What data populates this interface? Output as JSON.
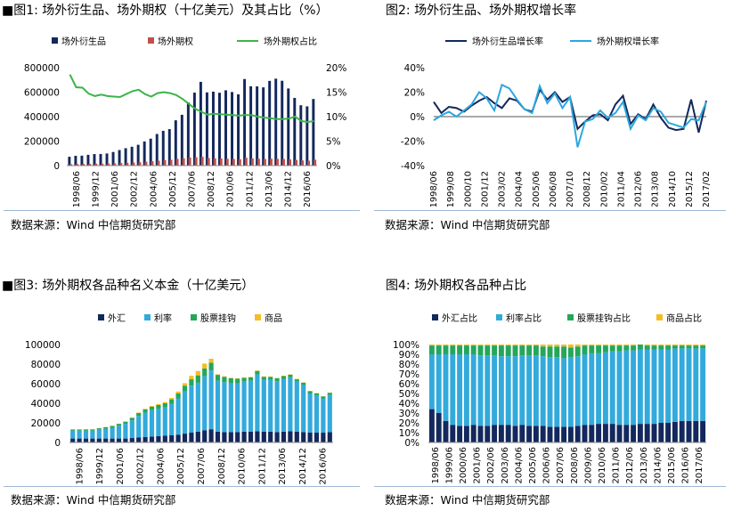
{
  "chart_data": [
    {
      "type": "bar+line",
      "title_prefix": "■",
      "title": "图1: 场外衍生品、场外期权（十亿美元）及其占比（%）",
      "source": "数据来源：Wind  中信期货研究部",
      "legend": [
        "场外衍生品",
        "场外期权",
        "场外期权占比"
      ],
      "colors": [
        "#13285c",
        "#c0504d",
        "#3cb44b"
      ],
      "categories_labeled": [
        "1998/06",
        "1999/12",
        "2001/06",
        "2002/12",
        "2004/06",
        "2005/12",
        "2007/06",
        "2008/12",
        "2010/06",
        "2011/12",
        "2013/06",
        "2014/12",
        "2016/06"
      ],
      "periods_start": "1998/06",
      "y_left": {
        "min": 0,
        "max": 800000,
        "ticks": [
          "0",
          "200000",
          "400000",
          "600000",
          "800000"
        ]
      },
      "y_right": {
        "min": 0,
        "max": 20,
        "ticks": [
          "0%",
          "5%",
          "10%",
          "15%",
          "20%"
        ]
      },
      "series": [
        {
          "name": "场外衍生品",
          "axis": "left",
          "values": [
            72000,
            80000,
            81000,
            88000,
            94000,
            95000,
            99000,
            111000,
            127000,
            142000,
            154000,
            170000,
            197000,
            220000,
            258000,
            284000,
            298000,
            370000,
            415000,
            516000,
            596000,
            684000,
            598000,
            604000,
            595000,
            615000,
            601000,
            582000,
            707000,
            648000,
            647000,
            639000,
            692000,
            710000,
            693000,
            630000,
            553000,
            493000,
            484000,
            544000
          ]
        },
        {
          "name": "场外期权",
          "axis": "left",
          "values": [
            12000,
            13000,
            14000,
            14000,
            16000,
            16000,
            17000,
            19000,
            21000,
            23000,
            26000,
            28000,
            32000,
            36000,
            40000,
            45000,
            48000,
            55000,
            60000,
            66000,
            68000,
            72000,
            62000,
            60000,
            58000,
            56000,
            55000,
            52000,
            64000,
            58000,
            56000,
            54000,
            56000,
            55000,
            54000,
            50000,
            46000,
            42000,
            40000,
            48000
          ]
        },
        {
          "name": "场外期权占比",
          "axis": "right",
          "values": [
            18.6,
            16.0,
            15.9,
            14.7,
            14.2,
            14.5,
            14.2,
            14.1,
            14.0,
            14.6,
            15.2,
            15.5,
            14.6,
            14.1,
            14.8,
            15.0,
            14.8,
            14.4,
            13.6,
            12.6,
            11.6,
            11.0,
            10.4,
            10.6,
            10.5,
            10.4,
            10.3,
            10.2,
            10.3,
            10.3,
            10.0,
            9.8,
            9.7,
            9.5,
            9.5,
            9.6,
            10.0,
            9.1,
            8.9,
            9.1
          ]
        }
      ]
    },
    {
      "type": "line",
      "title_prefix": "",
      "title": "图2: 场外衍生品、场外期权增长率",
      "source": "数据来源：Wind  中信期货研究部",
      "legend": [
        "场外衍生品增长率",
        "场外期权增长率"
      ],
      "colors": [
        "#13285c",
        "#2ca7df"
      ],
      "categories_labeled": [
        "1998/06",
        "1999/08",
        "2000/10",
        "2001/12",
        "2003/02",
        "2004/04",
        "2005/06",
        "2006/08",
        "2007/10",
        "2008/12",
        "2010/02",
        "2011/04",
        "2012/06",
        "2013/08",
        "2014/10",
        "2015/12",
        "2017/02"
      ],
      "y": {
        "min": -40,
        "max": 40,
        "ticks": [
          "-40%",
          "-20%",
          "0%",
          "20%",
          "40%"
        ]
      },
      "series": [
        {
          "name": "场外衍生品增长率",
          "values": [
            12,
            3,
            8,
            7,
            4,
            9,
            13,
            16,
            11,
            7,
            15,
            13,
            6,
            4,
            22,
            14,
            20,
            12,
            16,
            -10,
            -4,
            1,
            2,
            -3,
            10,
            17,
            -6,
            2,
            -2,
            10,
            -1,
            -9,
            -11,
            -10,
            14,
            -13,
            13
          ]
        },
        {
          "name": "场外期权增长率",
          "values": [
            -3,
            1,
            4,
            0,
            5,
            10,
            20,
            15,
            5,
            26,
            23,
            14,
            6,
            3,
            25,
            11,
            19,
            7,
            16,
            -25,
            -4,
            -2,
            5,
            -1,
            3,
            12,
            -10,
            1,
            -3,
            7,
            4,
            -5,
            -7,
            -9,
            -2,
            -3,
            12
          ]
        }
      ]
    },
    {
      "type": "stacked-bar",
      "title_prefix": "■",
      "title": "图3: 场外期权各品种名义本金（十亿美元）",
      "source": "数据来源：Wind  中信期货研究部",
      "legend": [
        "外汇",
        "利率",
        "股票挂钩",
        "商品"
      ],
      "colors": [
        "#13285c",
        "#33aadc",
        "#24a75a",
        "#f4bd23"
      ],
      "categories_labeled": [
        "1998/06",
        "1999/12",
        "2001/06",
        "2002/12",
        "2004/06",
        "2005/12",
        "2007/06",
        "2008/12",
        "2010/06",
        "2011/12",
        "2013/06",
        "2014/12",
        "2016/06"
      ],
      "y": {
        "min": 0,
        "max": 100000,
        "ticks": [
          "0",
          "20000",
          "40000",
          "60000",
          "80000",
          "100000"
        ]
      },
      "series": [
        {
          "name": "外汇",
          "values": [
            4000,
            4000,
            4000,
            4000,
            4000,
            4000,
            4000,
            4000,
            4000,
            4500,
            5000,
            5500,
            6000,
            6500,
            7000,
            7500,
            8000,
            9000,
            10000,
            11000,
            12500,
            13500,
            11000,
            10500,
            10500,
            10500,
            11000,
            11000,
            11500,
            11000,
            11000,
            10500,
            11000,
            11500,
            11000,
            10500,
            10000,
            10000,
            10000,
            10500
          ]
        },
        {
          "name": "利率",
          "values": [
            8000,
            8000,
            8000,
            8000,
            9000,
            10000,
            11000,
            13000,
            15000,
            18000,
            22000,
            25000,
            27000,
            28000,
            29000,
            32000,
            37000,
            43000,
            48000,
            50000,
            55000,
            60000,
            52000,
            51000,
            50000,
            50000,
            51000,
            52000,
            58000,
            53000,
            53000,
            52000,
            54000,
            55000,
            51000,
            48000,
            40000,
            38000,
            35000,
            38000
          ]
        },
        {
          "name": "股票挂钩",
          "values": [
            1200,
            1200,
            1300,
            1400,
            1500,
            1600,
            1800,
            2000,
            2200,
            2600,
            3000,
            3300,
            3500,
            3700,
            4000,
            4500,
            5000,
            6000,
            6500,
            7500,
            8000,
            8000,
            6000,
            5500,
            5000,
            4500,
            4000,
            3500,
            3500,
            3000,
            3000,
            3000,
            2800,
            2600,
            2500,
            2500,
            2400,
            2200,
            2000,
            2200
          ]
        },
        {
          "name": "商品",
          "values": [
            200,
            200,
            200,
            200,
            200,
            200,
            200,
            200,
            300,
            400,
            500,
            600,
            800,
            1000,
            1200,
            1500,
            2000,
            2500,
            3500,
            4500,
            5000,
            4000,
            600,
            600,
            500,
            500,
            500,
            500,
            500,
            500,
            400,
            400,
            400,
            400,
            400,
            300,
            300,
            300,
            300,
            300
          ]
        }
      ]
    },
    {
      "type": "stacked-bar-100",
      "title_prefix": "",
      "title": "图4: 场外期权各品种占比",
      "source": "数据来源：Wind  中信期货研究部",
      "legend": [
        "外汇占比",
        "利率占比",
        "股票挂钩占比",
        "商品占比"
      ],
      "colors": [
        "#13285c",
        "#33aadc",
        "#24a75a",
        "#f4bd23"
      ],
      "categories_labeled": [
        "1998/06",
        "1999/06",
        "2000/06",
        "2001/06",
        "2002/06",
        "2003/06",
        "2004/06",
        "2005/06",
        "2006/06",
        "2007/06",
        "2008/06",
        "2009/06",
        "2010/06",
        "2011/06",
        "2012/06",
        "2013/06",
        "2014/06",
        "2015/06",
        "2016/06",
        "2017/06"
      ],
      "y": {
        "min": 0,
        "max": 100,
        "ticks": [
          "0%",
          "10%",
          "20%",
          "30%",
          "40%",
          "50%",
          "60%",
          "70%",
          "80%",
          "90%",
          "100%"
        ]
      },
      "series": [
        {
          "name": "外汇占比",
          "values": [
            34,
            30,
            22,
            18,
            17,
            17,
            18,
            17,
            17,
            18,
            18,
            18,
            17,
            18,
            17,
            17,
            17,
            16,
            16,
            16,
            16,
            17,
            18,
            18,
            19,
            19,
            19,
            18,
            18,
            18,
            19,
            19,
            19,
            20,
            20,
            21,
            22,
            22,
            22,
            22
          ]
        },
        {
          "name": "利率占比",
          "values": [
            56,
            60,
            68,
            72,
            73,
            73,
            72,
            72,
            72,
            71,
            70,
            70,
            71,
            71,
            72,
            72,
            71,
            71,
            71,
            70,
            71,
            71,
            72,
            73,
            72,
            73,
            74,
            75,
            76,
            76,
            76,
            76,
            76,
            75,
            75,
            75,
            74,
            74,
            74,
            74
          ]
        },
        {
          "name": "股票挂钩占比",
          "values": [
            9,
            9,
            9,
            9,
            9,
            9,
            9,
            10,
            10,
            10,
            11,
            11,
            11,
            10,
            10,
            10,
            10,
            11,
            11,
            12,
            10,
            10,
            9,
            8,
            8,
            7,
            6,
            6,
            5,
            5,
            5,
            4,
            4,
            4,
            4,
            3,
            3,
            3,
            3,
            3
          ]
        },
        {
          "name": "商品占比",
          "values": [
            1,
            1,
            1,
            1,
            1,
            1,
            1,
            1,
            1,
            1,
            1,
            1,
            1,
            1,
            1,
            1,
            2,
            2,
            2,
            2,
            3,
            2,
            1,
            1,
            1,
            1,
            1,
            1,
            1,
            1,
            0,
            1,
            1,
            1,
            1,
            1,
            1,
            1,
            1,
            1
          ]
        }
      ]
    }
  ]
}
